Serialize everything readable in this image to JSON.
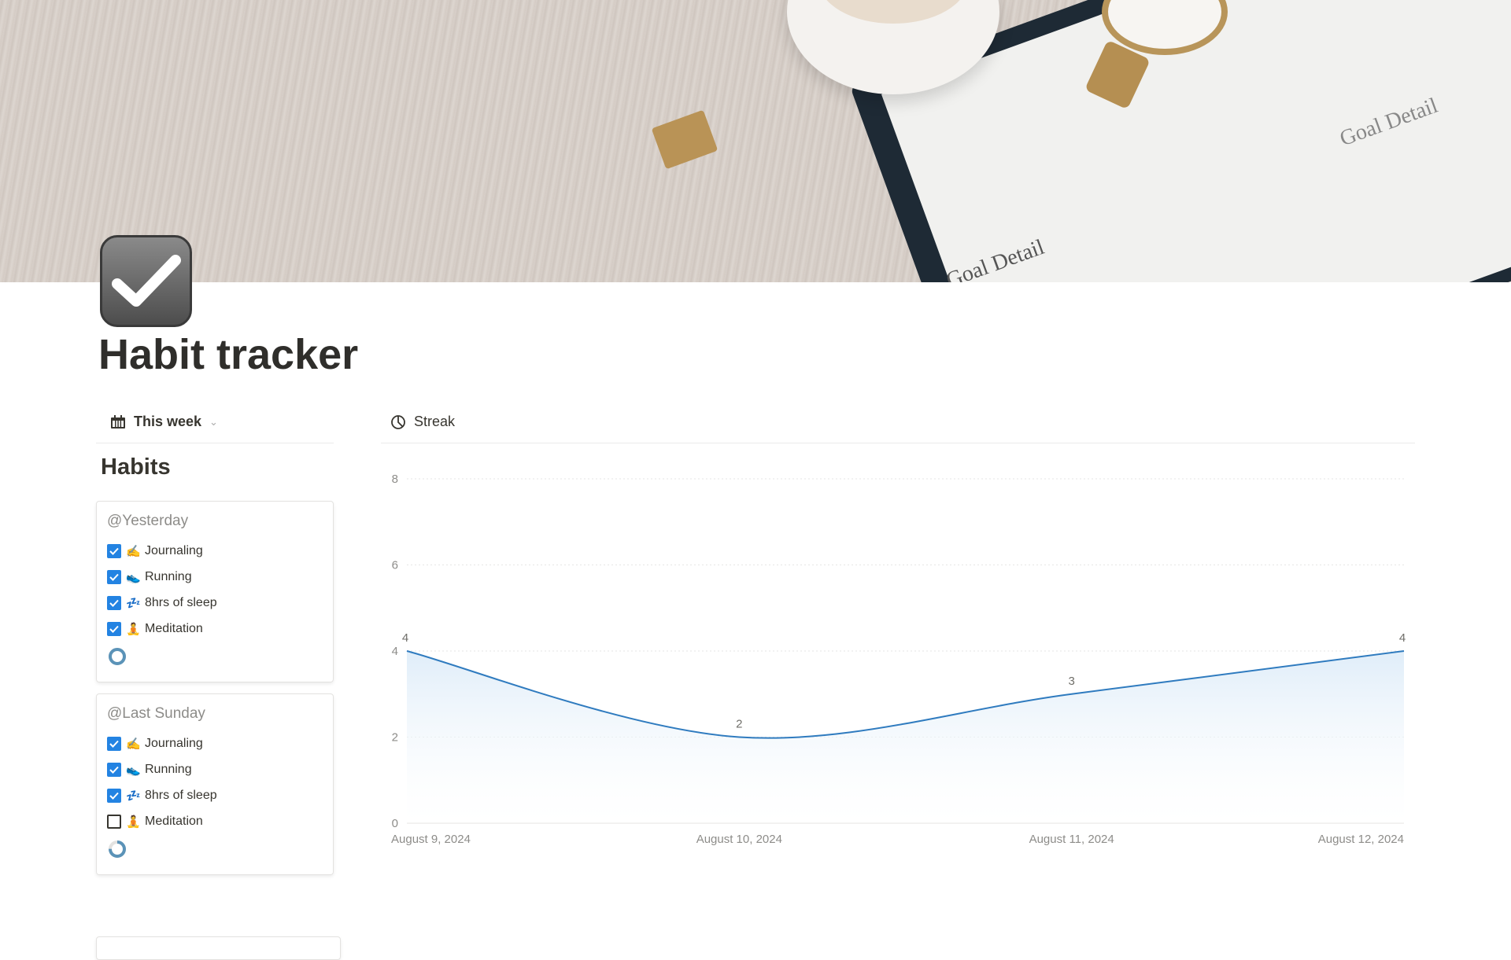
{
  "page": {
    "title": "Habit tracker",
    "icon": "checkmark-icon"
  },
  "banner": {
    "notebook_text_1": "Goal Detail",
    "notebook_text_2": "Goal Detail"
  },
  "left_view": {
    "label": "This week",
    "icon": "calendar-icon",
    "heading": "Habits"
  },
  "right_view": {
    "label": "Streak",
    "icon": "chart-icon"
  },
  "cards": [
    {
      "title": "@Yesterday",
      "progress": 1.0,
      "items": [
        {
          "emoji": "✍️",
          "label": "Journaling",
          "checked": true
        },
        {
          "emoji": "👟",
          "label": "Running",
          "checked": true
        },
        {
          "emoji": "💤",
          "label": "8hrs of sleep",
          "checked": true
        },
        {
          "emoji": "🧘",
          "label": "Meditation",
          "checked": true
        }
      ]
    },
    {
      "title": "@Last Sunday",
      "progress": 0.75,
      "items": [
        {
          "emoji": "✍️",
          "label": "Journaling",
          "checked": true
        },
        {
          "emoji": "👟",
          "label": "Running",
          "checked": true
        },
        {
          "emoji": "💤",
          "label": "8hrs of sleep",
          "checked": true
        },
        {
          "emoji": "🧘",
          "label": "Meditation",
          "checked": false
        }
      ]
    }
  ],
  "colors": {
    "accent": "#2383e2",
    "line": "#2f7bbf",
    "ring": "#5b93b8"
  },
  "chart_data": {
    "type": "area",
    "categories": [
      "August 9, 2024",
      "August 10, 2024",
      "August 11, 2024",
      "August 12, 2024"
    ],
    "values": [
      4,
      2,
      3,
      4
    ],
    "yticks": [
      0,
      2,
      4,
      6,
      8
    ],
    "ylim": [
      0,
      8
    ],
    "grid": true,
    "smooth": true,
    "data_labels": true
  }
}
